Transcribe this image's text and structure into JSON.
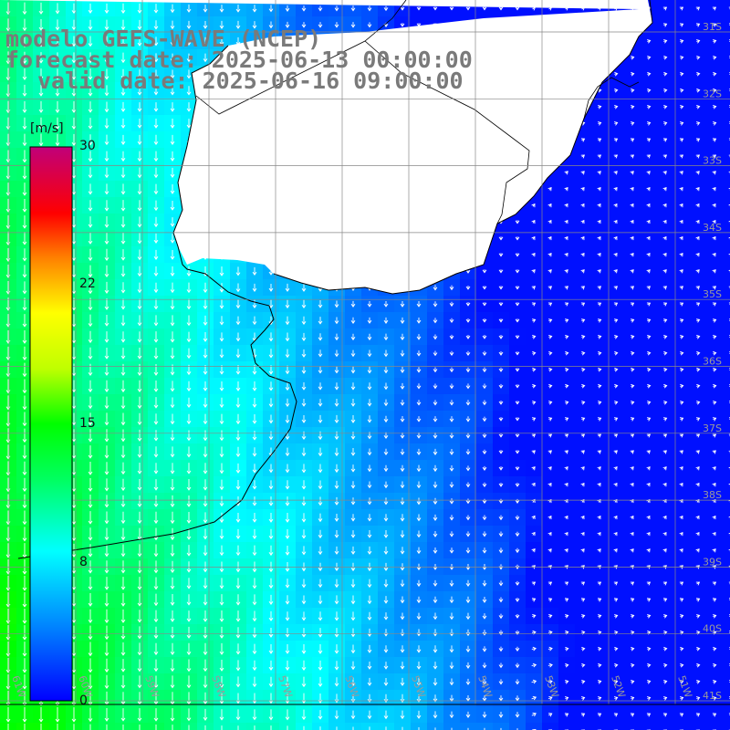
{
  "title": {
    "line1": "modelo GEFS-WAVE (NCEP)",
    "line2": "forecast date: 2025-06-13 00:00:00",
    "line3": "valid date: 2025-06-16 09:00:00"
  },
  "colorbar": {
    "unit": "[m/s]",
    "ticks": [
      "30",
      "22",
      "15",
      "8",
      "0"
    ],
    "tick_values": [
      30,
      22,
      15,
      8,
      0
    ],
    "min": 0,
    "max": 30,
    "colors": [
      "#0000ff",
      "#00a0ff",
      "#00ffff",
      "#00ff80",
      "#00e000",
      "#80ff00",
      "#ffff00",
      "#ff8000",
      "#ff0000",
      "#ff0060",
      "#c00080"
    ]
  },
  "lat_labels": [
    "31S",
    "32S",
    "33S",
    "34S",
    "35S",
    "36S",
    "37S",
    "38S",
    "39S",
    "40S",
    "41S"
  ],
  "lon_labels": [
    "61W",
    "60W",
    "59W",
    "58W",
    "57W",
    "56W",
    "55W",
    "54W",
    "53W",
    "52W",
    "51W"
  ],
  "map": {
    "variable": "wind speed",
    "grid": true,
    "land_color": "#ffffff",
    "coastline_color": "#000000"
  }
}
